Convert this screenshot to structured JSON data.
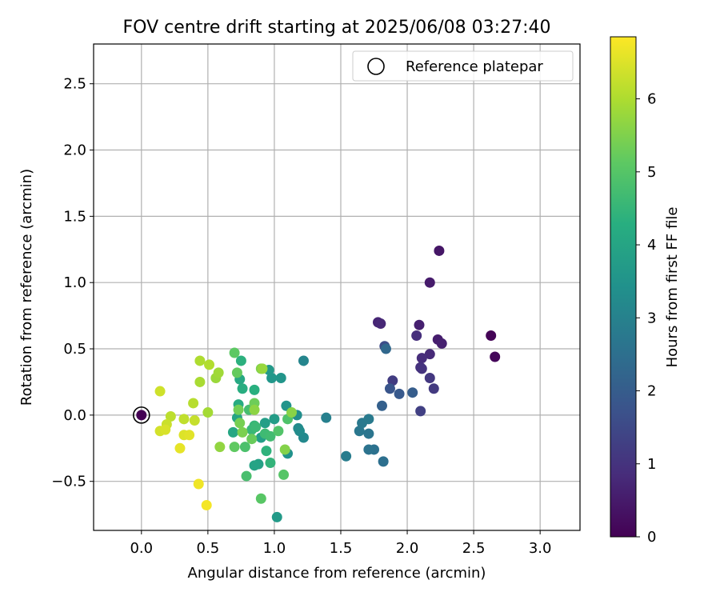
{
  "chart_data": {
    "type": "scatter",
    "title": "FOV centre drift starting at 2025/06/08 03:27:40",
    "xlabel": "Angular distance from reference (arcmin)",
    "ylabel": "Rotation from reference (arcmin)",
    "xlim": [
      -0.36,
      3.3
    ],
    "ylim": [
      -0.87,
      2.8
    ],
    "xticks": [
      "0.0",
      "0.5",
      "1.0",
      "1.5",
      "2.0",
      "2.5",
      "3.0"
    ],
    "xtick_values": [
      0,
      0.5,
      1.0,
      1.5,
      2.0,
      2.5,
      3.0
    ],
    "yticks": [
      "−0.5",
      "0.0",
      "0.5",
      "1.0",
      "1.5",
      "2.0",
      "2.5"
    ],
    "ytick_values": [
      -0.5,
      0,
      0.5,
      1.0,
      1.5,
      2.0,
      2.5
    ],
    "grid": true,
    "legend": {
      "placement": "top-right",
      "entries": [
        "Reference platepar"
      ]
    },
    "reference_point": {
      "x": 0.0,
      "y": 0.0
    },
    "colorbar": {
      "label": "Hours from first FF file",
      "colormap": "viridis",
      "range": [
        0,
        6.85
      ],
      "ticks": [
        "0",
        "1",
        "2",
        "3",
        "4",
        "5",
        "6"
      ],
      "tick_values": [
        0,
        1,
        2,
        3,
        4,
        5,
        6
      ]
    },
    "series": [
      {
        "points": [
          {
            "x": 0.0,
            "y": 0.0,
            "t": 0.0
          },
          {
            "x": 2.63,
            "y": 0.6,
            "t": 0.05
          },
          {
            "x": 2.66,
            "y": 0.44,
            "t": 0.1
          },
          {
            "x": 2.24,
            "y": 1.24,
            "t": 0.4
          },
          {
            "x": 2.17,
            "y": 1.0,
            "t": 0.5
          },
          {
            "x": 2.23,
            "y": 0.57,
            "t": 0.55
          },
          {
            "x": 2.26,
            "y": 0.54,
            "t": 0.6
          },
          {
            "x": 2.09,
            "y": 0.68,
            "t": 0.6
          },
          {
            "x": 1.78,
            "y": 0.7,
            "t": 0.7
          },
          {
            "x": 1.8,
            "y": 0.69,
            "t": 0.75
          },
          {
            "x": 2.17,
            "y": 0.46,
            "t": 0.8
          },
          {
            "x": 2.11,
            "y": 0.43,
            "t": 0.85
          },
          {
            "x": 2.07,
            "y": 0.6,
            "t": 0.9
          },
          {
            "x": 2.1,
            "y": 0.36,
            "t": 0.95
          },
          {
            "x": 2.11,
            "y": 0.35,
            "t": 1.0
          },
          {
            "x": 2.17,
            "y": 0.28,
            "t": 1.1
          },
          {
            "x": 2.2,
            "y": 0.2,
            "t": 1.15
          },
          {
            "x": 1.89,
            "y": 0.26,
            "t": 1.2
          },
          {
            "x": 2.1,
            "y": 0.03,
            "t": 1.3
          },
          {
            "x": 1.83,
            "y": 0.52,
            "t": 1.6
          },
          {
            "x": 1.87,
            "y": 0.2,
            "t": 1.8
          },
          {
            "x": 1.94,
            "y": 0.16,
            "t": 1.9
          },
          {
            "x": 2.04,
            "y": 0.17,
            "t": 2.0
          },
          {
            "x": 1.81,
            "y": 0.07,
            "t": 2.1
          },
          {
            "x": 1.84,
            "y": 0.5,
            "t": 2.3
          },
          {
            "x": 1.82,
            "y": -0.35,
            "t": 2.5
          },
          {
            "x": 1.75,
            "y": -0.26,
            "t": 2.55
          },
          {
            "x": 1.71,
            "y": -0.26,
            "t": 2.6
          },
          {
            "x": 1.71,
            "y": -0.14,
            "t": 2.65
          },
          {
            "x": 1.64,
            "y": -0.12,
            "t": 2.7
          },
          {
            "x": 1.66,
            "y": -0.06,
            "t": 2.75
          },
          {
            "x": 1.71,
            "y": -0.03,
            "t": 2.8
          },
          {
            "x": 1.54,
            "y": -0.31,
            "t": 2.85
          },
          {
            "x": 1.39,
            "y": -0.02,
            "t": 2.95
          },
          {
            "x": 1.22,
            "y": 0.41,
            "t": 3.1
          },
          {
            "x": 1.22,
            "y": -0.17,
            "t": 3.2
          },
          {
            "x": 1.18,
            "y": -0.1,
            "t": 3.25
          },
          {
            "x": 1.19,
            "y": -0.12,
            "t": 3.3
          },
          {
            "x": 1.17,
            "y": 0.0,
            "t": 3.35
          },
          {
            "x": 1.1,
            "y": -0.29,
            "t": 3.45
          },
          {
            "x": 1.09,
            "y": 0.07,
            "t": 3.5
          },
          {
            "x": 1.05,
            "y": 0.28,
            "t": 3.55
          },
          {
            "x": 0.98,
            "y": 0.28,
            "t": 3.6
          },
          {
            "x": 0.96,
            "y": 0.34,
            "t": 3.65
          },
          {
            "x": 1.02,
            "y": -0.77,
            "t": 3.7
          },
          {
            "x": 1.0,
            "y": -0.03,
            "t": 3.75
          },
          {
            "x": 0.93,
            "y": -0.06,
            "t": 3.8
          },
          {
            "x": 0.9,
            "y": -0.17,
            "t": 3.85
          },
          {
            "x": 0.88,
            "y": -0.37,
            "t": 3.9
          },
          {
            "x": 0.85,
            "y": -0.38,
            "t": 3.95
          },
          {
            "x": 0.72,
            "y": -0.02,
            "t": 4.0
          },
          {
            "x": 0.69,
            "y": -0.13,
            "t": 4.05
          },
          {
            "x": 0.74,
            "y": 0.27,
            "t": 4.1
          },
          {
            "x": 0.73,
            "y": 0.08,
            "t": 4.2
          },
          {
            "x": 0.76,
            "y": 0.2,
            "t": 4.25
          },
          {
            "x": 0.85,
            "y": 0.19,
            "t": 4.3
          },
          {
            "x": 0.75,
            "y": 0.41,
            "t": 4.35
          },
          {
            "x": 0.94,
            "y": -0.27,
            "t": 4.4
          },
          {
            "x": 0.97,
            "y": -0.36,
            "t": 4.45
          },
          {
            "x": 0.85,
            "y": -0.08,
            "t": 4.5
          },
          {
            "x": 0.83,
            "y": -0.11,
            "t": 4.55
          },
          {
            "x": 0.86,
            "y": -0.09,
            "t": 4.6
          },
          {
            "x": 0.93,
            "y": -0.14,
            "t": 4.65
          },
          {
            "x": 0.97,
            "y": -0.16,
            "t": 4.7
          },
          {
            "x": 0.81,
            "y": 0.04,
            "t": 4.75
          },
          {
            "x": 0.79,
            "y": -0.46,
            "t": 4.8
          },
          {
            "x": 0.78,
            "y": -0.24,
            "t": 4.85
          },
          {
            "x": 1.1,
            "y": -0.03,
            "t": 4.9
          },
          {
            "x": 1.03,
            "y": -0.12,
            "t": 4.95
          },
          {
            "x": 1.07,
            "y": -0.45,
            "t": 5.0
          },
          {
            "x": 0.9,
            "y": -0.63,
            "t": 5.05
          },
          {
            "x": 0.7,
            "y": 0.47,
            "t": 5.1
          },
          {
            "x": 0.7,
            "y": -0.24,
            "t": 5.15
          },
          {
            "x": 0.72,
            "y": 0.32,
            "t": 5.2
          },
          {
            "x": 0.83,
            "y": -0.18,
            "t": 5.25
          },
          {
            "x": 0.85,
            "y": 0.09,
            "t": 5.3
          },
          {
            "x": 0.73,
            "y": 0.04,
            "t": 5.35
          },
          {
            "x": 0.74,
            "y": -0.06,
            "t": 5.4
          },
          {
            "x": 0.76,
            "y": -0.13,
            "t": 5.45
          },
          {
            "x": 0.9,
            "y": 0.35,
            "t": 5.5
          },
          {
            "x": 1.08,
            "y": -0.26,
            "t": 5.55
          },
          {
            "x": 1.13,
            "y": 0.02,
            "t": 5.6
          },
          {
            "x": 0.85,
            "y": 0.04,
            "t": 5.65
          },
          {
            "x": 0.59,
            "y": -0.24,
            "t": 5.7
          },
          {
            "x": 0.91,
            "y": 0.35,
            "t": 5.75
          },
          {
            "x": 0.56,
            "y": 0.28,
            "t": 5.8
          },
          {
            "x": 0.58,
            "y": 0.32,
            "t": 5.85
          },
          {
            "x": 0.5,
            "y": 0.02,
            "t": 5.9
          },
          {
            "x": 0.44,
            "y": 0.25,
            "t": 5.95
          },
          {
            "x": 0.44,
            "y": 0.41,
            "t": 6.0
          },
          {
            "x": 0.51,
            "y": 0.38,
            "t": 6.05
          },
          {
            "x": 0.39,
            "y": 0.09,
            "t": 6.1
          },
          {
            "x": 0.22,
            "y": -0.01,
            "t": 6.15
          },
          {
            "x": 0.32,
            "y": -0.03,
            "t": 6.2
          },
          {
            "x": 0.4,
            "y": -0.04,
            "t": 6.25
          },
          {
            "x": 0.19,
            "y": -0.07,
            "t": 6.3
          },
          {
            "x": 0.14,
            "y": 0.18,
            "t": 6.35
          },
          {
            "x": 0.14,
            "y": -0.12,
            "t": 6.4
          },
          {
            "x": 0.18,
            "y": -0.11,
            "t": 6.45
          },
          {
            "x": 0.32,
            "y": -0.15,
            "t": 6.5
          },
          {
            "x": 0.36,
            "y": -0.15,
            "t": 6.55
          },
          {
            "x": 0.29,
            "y": -0.25,
            "t": 6.6
          },
          {
            "x": 0.43,
            "y": -0.52,
            "t": 6.7
          },
          {
            "x": 0.49,
            "y": -0.68,
            "t": 6.75
          }
        ]
      }
    ]
  }
}
